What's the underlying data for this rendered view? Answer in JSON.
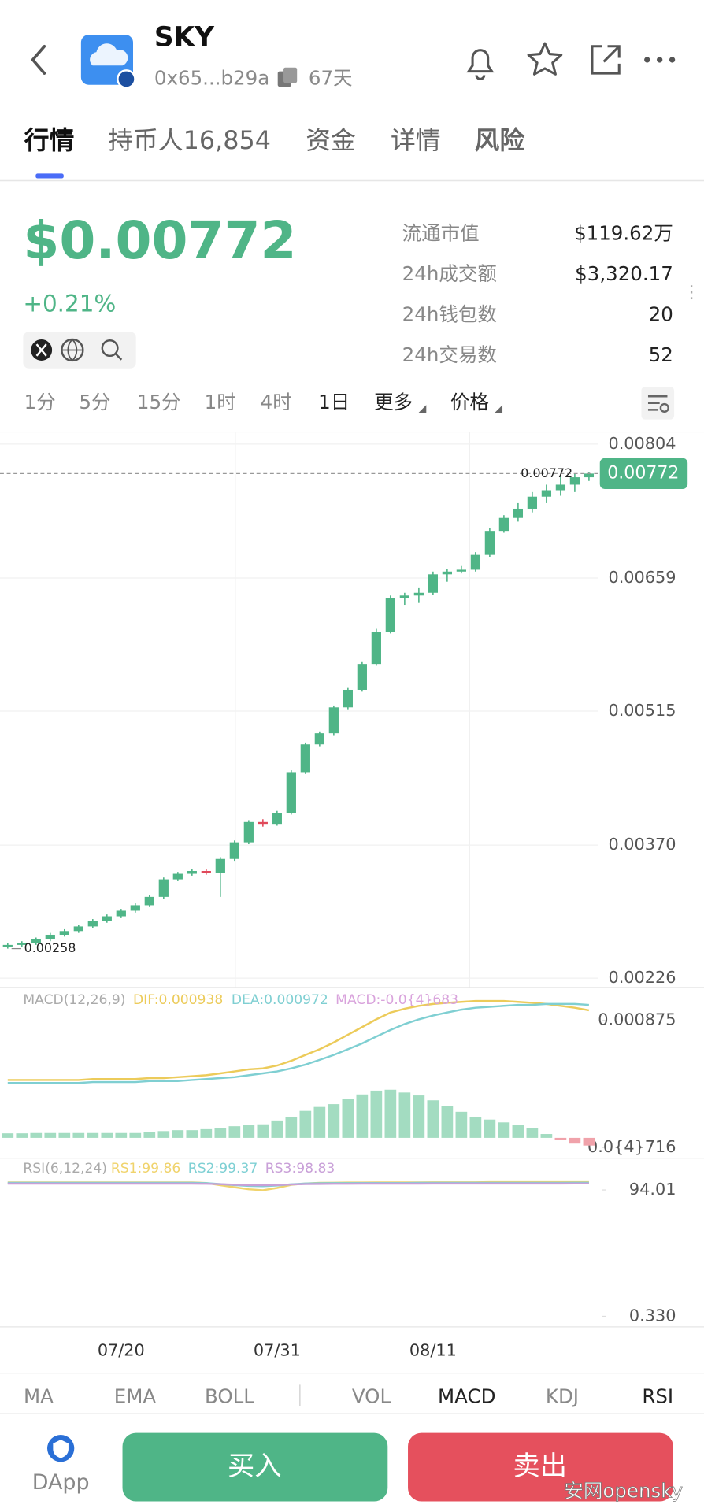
{
  "header": {
    "title": "SKY",
    "address": "0x65...b29a",
    "age": "67天"
  },
  "tabs": [
    "行情",
    "持币人16,854",
    "资金",
    "详情",
    "风险"
  ],
  "price": {
    "value": "$0.00772",
    "change": "+0.21%"
  },
  "stats": [
    {
      "label": "流通市值",
      "value": "$119.62万"
    },
    {
      "label": "24h成交额",
      "value": "$3,320.17"
    },
    {
      "label": "24h钱包数",
      "value": "20"
    },
    {
      "label": "24h交易数",
      "value": "52"
    }
  ],
  "intervals": [
    "1分",
    "5分",
    "15分",
    "1时",
    "4时",
    "1日",
    "更多",
    "价格"
  ],
  "chart_data": [
    {
      "type": "candlestick",
      "up_color": "#4fb587",
      "down_color": "#e0495a",
      "grid": true,
      "categories": [
        null,
        null,
        null,
        null,
        null,
        null,
        null,
        null,
        "07/20",
        null,
        null,
        null,
        null,
        null,
        null,
        null,
        null,
        null,
        null,
        "07/31",
        null,
        null,
        null,
        null,
        null,
        null,
        null,
        null,
        null,
        null,
        "08/11",
        null,
        null,
        null,
        null,
        null,
        null,
        null,
        null,
        null,
        null,
        null
      ],
      "open": [
        0.0026,
        0.00262,
        0.00264,
        0.00268,
        0.00273,
        0.00277,
        0.00282,
        0.00288,
        0.00293,
        0.00299,
        0.00305,
        0.00314,
        0.00333,
        0.00339,
        0.00342,
        0.0034,
        0.00355,
        0.00373,
        0.00395,
        0.00393,
        0.00405,
        0.00449,
        0.00479,
        0.00491,
        0.00519,
        0.00538,
        0.00566,
        0.00601,
        0.00637,
        0.0064,
        0.00643,
        0.00663,
        0.00666,
        0.00668,
        0.00684,
        0.0071,
        0.00724,
        0.00734,
        0.00747,
        0.00754,
        0.0076,
        0.00768
      ],
      "high": [
        0.00264,
        0.00266,
        0.0027,
        0.00275,
        0.00279,
        0.00284,
        0.0029,
        0.00295,
        0.00301,
        0.00307,
        0.00316,
        0.00335,
        0.00341,
        0.00344,
        0.00344,
        0.00357,
        0.00375,
        0.00397,
        0.00398,
        0.00407,
        0.00451,
        0.00481,
        0.00493,
        0.00521,
        0.0054,
        0.00568,
        0.00604,
        0.0064,
        0.00643,
        0.00648,
        0.00666,
        0.00669,
        0.00672,
        0.00687,
        0.00713,
        0.00727,
        0.0074,
        0.00752,
        0.0076,
        0.0077,
        0.00772,
        0.00774
      ],
      "low": [
        0.00258,
        0.0026,
        0.00262,
        0.00266,
        0.00271,
        0.00275,
        0.0028,
        0.00286,
        0.00291,
        0.00297,
        0.00303,
        0.00312,
        0.00331,
        0.00337,
        0.00338,
        0.00314,
        0.00353,
        0.00371,
        0.0039,
        0.00391,
        0.00403,
        0.00447,
        0.00477,
        0.00489,
        0.00517,
        0.00536,
        0.00564,
        0.00599,
        0.0063,
        0.00632,
        0.00641,
        0.00655,
        0.00664,
        0.00666,
        0.00682,
        0.00708,
        0.0072,
        0.0073,
        0.0074,
        0.00748,
        0.00752,
        0.00764
      ],
      "close": [
        0.00262,
        0.00264,
        0.00268,
        0.00273,
        0.00277,
        0.00282,
        0.00288,
        0.00293,
        0.00299,
        0.00305,
        0.00314,
        0.00333,
        0.00339,
        0.00342,
        0.0034,
        0.00355,
        0.00373,
        0.00395,
        0.00393,
        0.00405,
        0.00449,
        0.00479,
        0.00491,
        0.00519,
        0.00538,
        0.00566,
        0.00601,
        0.00637,
        0.0064,
        0.00643,
        0.00663,
        0.00666,
        0.00668,
        0.00684,
        0.0071,
        0.00724,
        0.00734,
        0.00747,
        0.00754,
        0.0076,
        0.00768,
        0.00772
      ],
      "current_price": 0.00772,
      "min_price": 0.00258,
      "ylim": [
        0.00216,
        0.00817
      ],
      "yticks": [
        0.00804,
        0.00659,
        0.00515,
        {
          "value": 0.0037,
          "label": "0.00370"
        },
        0.00226
      ]
    },
    {
      "type": "macd",
      "title": "MACD(12,26,9)",
      "ylim": [
        1.1e-05,
        0.001058
      ],
      "yticks": [
        0.000875,
        {
          "value": 7.16e-05,
          "label": "0.0{4}716"
        }
      ],
      "y2lim": [
        -0.000171,
        0.0013
      ],
      "series": [
        {
          "name": "DIF:0.000938",
          "color": "#eccb5a",
          "values": [
            0.000498,
            0.000498,
            0.000498,
            0.000498,
            0.000498,
            0.000498,
            0.000504,
            0.000504,
            0.000504,
            0.000504,
            0.00051,
            0.00051,
            0.000516,
            0.000522,
            0.000528,
            0.00054,
            0.000552,
            0.000565,
            0.000571,
            0.000589,
            0.000619,
            0.000656,
            0.000692,
            0.000735,
            0.000784,
            0.000832,
            0.000881,
            0.000924,
            0.000948,
            0.000966,
            0.000978,
            0.000985,
            0.000991,
            0.000997,
            0.000997,
            0.000997,
            0.000991,
            0.000985,
            0.000978,
            0.000966,
            0.000954,
            0.000938
          ]
        },
        {
          "name": "DEA:0.000972",
          "color": "#7fcfd2",
          "values": [
            0.000479,
            0.000479,
            0.000479,
            0.000479,
            0.000479,
            0.000479,
            0.000485,
            0.000485,
            0.000485,
            0.000485,
            0.000491,
            0.000491,
            0.000491,
            0.000498,
            0.000504,
            0.00051,
            0.000516,
            0.000528,
            0.00054,
            0.000552,
            0.000571,
            0.000595,
            0.000625,
            0.000656,
            0.000692,
            0.000729,
            0.000772,
            0.000814,
            0.000851,
            0.000881,
            0.000905,
            0.000924,
            0.000942,
            0.000954,
            0.00096,
            0.000966,
            0.000972,
            0.000972,
            0.000978,
            0.000978,
            0.000978,
            0.000972
          ]
        },
        {
          "name": "MACD:-0.0{4}683",
          "color": "#d9a3dc",
          "axis": "y2",
          "positive_color": "#a3dcc1",
          "negative_color": "#f0a2aa",
          "values": [
            4e-05,
            4e-05,
            4.3e-05,
            4.3e-05,
            4.3e-05,
            4.3e-05,
            4.3e-05,
            4.3e-05,
            4.3e-05,
            4.3e-05,
            5.1e-05,
            6e-05,
            6.8e-05,
            6.8e-05,
            7.7e-05,
            8.5e-05,
            0.000103,
            0.000111,
            0.00012,
            0.000154,
            0.000188,
            0.000239,
            0.000274,
            0.000299,
            0.000342,
            0.000385,
            0.000419,
            0.000427,
            0.000402,
            0.000376,
            0.000333,
            0.000282,
            0.000231,
            0.000188,
            0.000162,
            0.000137,
            0.000111,
            8.5e-05,
            3.4e-05,
            -2e-05,
            -5.1e-05,
            -6.83e-05
          ]
        }
      ]
    },
    {
      "type": "line",
      "title": "RSI(6,12,24)",
      "ylim": [
        -6.8,
        116.2
      ],
      "yticks": [
        94.01,
        {
          "value": 0.33,
          "label": "0.330"
        }
      ],
      "series": [
        {
          "name": "RS1:99.86",
          "color": "#f0d36c",
          "values": [
            99.6,
            99.6,
            99.6,
            99.6,
            99.6,
            99.6,
            99.6,
            99.6,
            99.6,
            99.6,
            99.6,
            99.6,
            99.6,
            99.6,
            99.2,
            97.5,
            96.0,
            94.5,
            93.8,
            95.5,
            97.8,
            98.8,
            99.3,
            99.4,
            99.5,
            99.5,
            99.6,
            99.6,
            99.6,
            99.6,
            99.7,
            99.7,
            99.7,
            99.7,
            99.8,
            99.8,
            99.8,
            99.8,
            99.8,
            99.8,
            99.85,
            99.86
          ]
        },
        {
          "name": "RS2:99.37",
          "color": "#7fd0d4",
          "values": [
            99.3,
            99.3,
            99.3,
            99.3,
            99.3,
            99.3,
            99.3,
            99.3,
            99.3,
            99.3,
            99.3,
            99.3,
            99.3,
            99.3,
            99.1,
            98.4,
            97.6,
            97.0,
            96.8,
            97.3,
            98.2,
            98.8,
            99.0,
            99.1,
            99.1,
            99.2,
            99.2,
            99.2,
            99.2,
            99.3,
            99.3,
            99.3,
            99.3,
            99.3,
            99.3,
            99.35,
            99.35,
            99.35,
            99.35,
            99.35,
            99.37,
            99.37
          ]
        },
        {
          "name": "RS3:98.83",
          "color": "#c9a0d8",
          "values": [
            98.7,
            98.7,
            98.7,
            98.7,
            98.7,
            98.7,
            98.7,
            98.7,
            98.7,
            98.7,
            98.7,
            98.7,
            98.7,
            98.7,
            98.6,
            98.3,
            97.9,
            97.6,
            97.5,
            97.7,
            98.1,
            98.4,
            98.5,
            98.6,
            98.6,
            98.7,
            98.7,
            98.7,
            98.7,
            98.7,
            98.8,
            98.8,
            98.8,
            98.8,
            98.8,
            98.8,
            98.8,
            98.8,
            98.8,
            98.8,
            98.83,
            98.83
          ]
        }
      ]
    }
  ],
  "indicator_tabs": [
    "MA",
    "EMA",
    "BOLL",
    "VOL",
    "MACD",
    "KDJ",
    "RSI"
  ],
  "footer": {
    "dapp": "DApp",
    "buy": "买入",
    "sell": "卖出",
    "watermark": "安网opensky"
  }
}
